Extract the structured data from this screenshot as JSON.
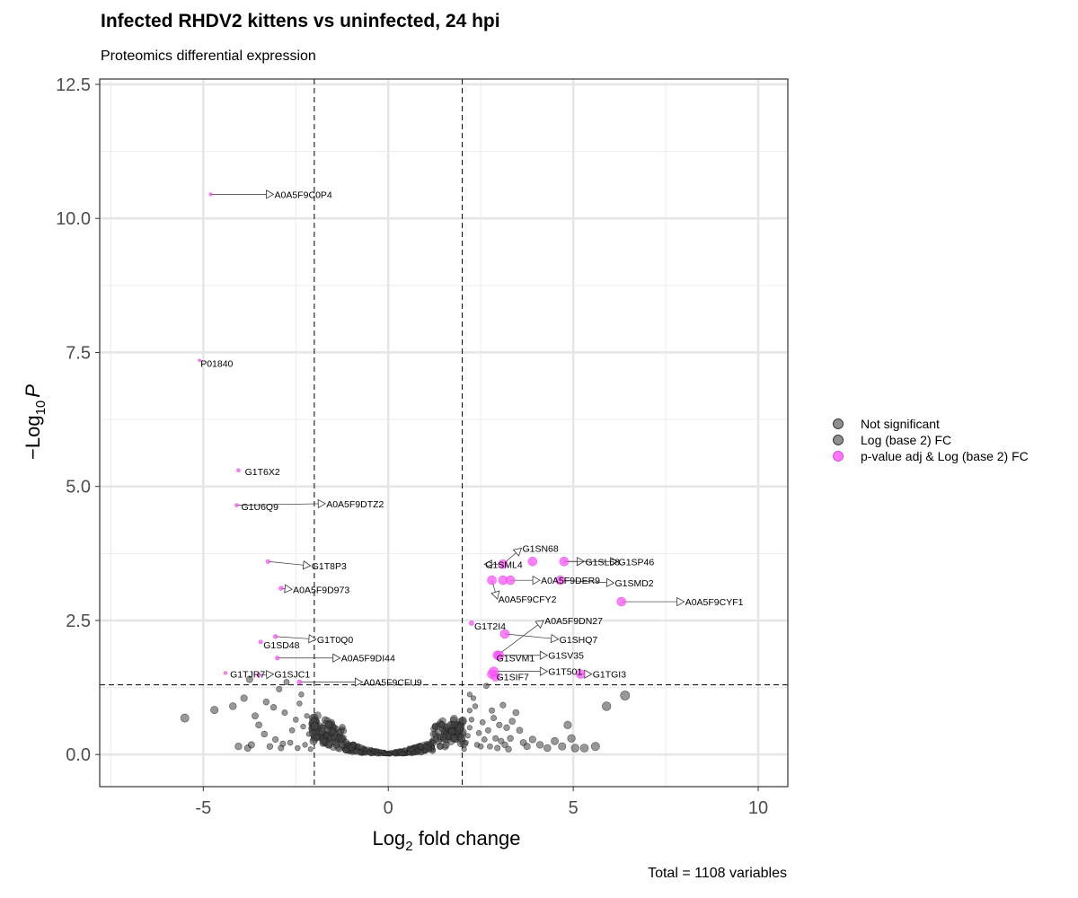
{
  "chart_data": {
    "type": "scatter",
    "title": "Infected RHDV2 kittens vs uninfected, 24 hpi",
    "subtitle": "Proteomics differential expression",
    "caption": "Total = 1108 variables",
    "xlabel": {
      "base": "Log",
      "sub": "2",
      "rest": " fold change"
    },
    "ylabel": {
      "prefix": "−Log",
      "sub": "10",
      "italic": "P"
    },
    "xlim": [
      -7.8,
      10.8
    ],
    "ylim": [
      -0.6,
      12.6
    ],
    "x_ticks": [
      -5,
      0,
      5,
      10
    ],
    "x_tick_labels": [
      "-5",
      "0",
      "5",
      "10"
    ],
    "y_ticks": [
      0,
      2.5,
      5,
      7.5,
      10,
      12.5
    ],
    "y_tick_labels": [
      "0.0",
      "2.5",
      "5.0",
      "7.5",
      "10.0",
      "12.5"
    ],
    "grid": true,
    "fc_cutoffs": [
      -2,
      2
    ],
    "p_cutoff": 1.3,
    "legend_position": "right",
    "legend": [
      {
        "label": "Not significant",
        "color": "#333333"
      },
      {
        "label": "Log (base 2) FC",
        "color": "#333333"
      },
      {
        "label": "p-value adj & Log (base 2) FC",
        "color": "#ff44ff"
      }
    ],
    "colors": {
      "ns": "#444444",
      "sig": "#ff55ff"
    },
    "series": [
      {
        "name": "Log (base 2) FC",
        "points": [
          [
            -5.5,
            0.68
          ],
          [
            -4.7,
            0.83
          ],
          [
            -4.2,
            0.9
          ],
          [
            -3.9,
            1.05
          ],
          [
            -3.75,
            1.4
          ],
          [
            -3.6,
            0.72
          ],
          [
            -3.5,
            0.55
          ],
          [
            -3.3,
            0.98
          ],
          [
            -3.1,
            0.88
          ],
          [
            -2.95,
            1.22
          ],
          [
            -2.8,
            0.78
          ],
          [
            -2.75,
            1.35
          ],
          [
            -2.6,
            0.45
          ],
          [
            -2.5,
            0.65
          ],
          [
            -2.4,
            0.95
          ],
          [
            -2.35,
            1.12
          ],
          [
            -2.3,
            0.52
          ],
          [
            -2.2,
            0.72
          ],
          [
            -2.15,
            0.38
          ],
          [
            -3.35,
            0.38
          ],
          [
            -3.05,
            0.28
          ],
          [
            -2.65,
            0.22
          ],
          [
            -4.05,
            0.15
          ],
          [
            -3.8,
            0.12
          ],
          [
            -3.7,
            0.18
          ],
          [
            -3.2,
            0.15
          ],
          [
            -2.9,
            0.12
          ],
          [
            -2.85,
            0.2
          ],
          [
            -2.45,
            0.12
          ],
          [
            -2.25,
            0.18
          ],
          [
            -2.1,
            0.1
          ],
          [
            2.05,
            0.1
          ],
          [
            2.1,
            0.22
          ],
          [
            2.15,
            0.35
          ],
          [
            2.2,
            0.5
          ],
          [
            2.25,
            0.65
          ],
          [
            2.2,
            0.82
          ],
          [
            2.3,
            1.05
          ],
          [
            2.2,
            1.12
          ],
          [
            2.35,
            0.9
          ],
          [
            2.4,
            0.18
          ],
          [
            2.45,
            0.4
          ],
          [
            2.5,
            0.15
          ],
          [
            2.55,
            0.6
          ],
          [
            2.6,
            0.28
          ],
          [
            2.65,
            1.28
          ],
          [
            2.7,
            0.45
          ],
          [
            2.75,
            0.15
          ],
          [
            2.8,
            0.82
          ],
          [
            2.85,
            0.68
          ],
          [
            2.9,
            0.3
          ],
          [
            2.95,
            0.12
          ],
          [
            3.0,
            0.55
          ],
          [
            3.05,
            0.25
          ],
          [
            3.1,
            0.92
          ],
          [
            3.15,
            0.18
          ],
          [
            3.2,
            0.5
          ],
          [
            3.25,
            0.1
          ],
          [
            3.3,
            0.3
          ],
          [
            3.35,
            0.62
          ],
          [
            3.45,
            0.78
          ],
          [
            3.55,
            0.45
          ],
          [
            3.65,
            0.22
          ],
          [
            3.75,
            0.15
          ],
          [
            3.9,
            0.28
          ],
          [
            4.1,
            0.18
          ],
          [
            4.3,
            0.12
          ],
          [
            4.5,
            0.25
          ],
          [
            4.7,
            0.15
          ],
          [
            4.85,
            0.55
          ],
          [
            4.95,
            0.3
          ],
          [
            5.05,
            0.12
          ],
          [
            5.3,
            0.12
          ],
          [
            5.6,
            0.15
          ],
          [
            5.9,
            0.9
          ],
          [
            6.4,
            1.1
          ]
        ]
      },
      {
        "name": "p-value adj & Log (base 2) FC",
        "points": [
          [
            -4.8,
            10.45
          ],
          [
            -5.1,
            7.35
          ],
          [
            -4.05,
            5.3
          ],
          [
            -4.1,
            4.65
          ],
          [
            -3.25,
            3.6
          ],
          [
            -2.9,
            3.1
          ],
          [
            -3.05,
            2.2
          ],
          [
            -3.45,
            2.1
          ],
          [
            -3.0,
            1.8
          ],
          [
            -4.4,
            1.52
          ],
          [
            -3.5,
            1.48
          ],
          [
            -2.4,
            1.35
          ],
          [
            3.1,
            3.55
          ],
          [
            3.9,
            3.6
          ],
          [
            4.75,
            3.6
          ],
          [
            2.8,
            3.25
          ],
          [
            3.1,
            3.25
          ],
          [
            3.3,
            3.25
          ],
          [
            4.65,
            3.25
          ],
          [
            6.3,
            2.85
          ],
          [
            2.25,
            2.45
          ],
          [
            3.15,
            2.25
          ],
          [
            2.95,
            1.85
          ],
          [
            3.0,
            1.85
          ],
          [
            2.8,
            1.5
          ],
          [
            2.9,
            1.45
          ],
          [
            5.2,
            1.5
          ],
          [
            2.85,
            1.55
          ]
        ]
      }
    ],
    "labels": [
      {
        "text": "A0A5F9C0P4",
        "x": -4.8,
        "y": 10.45,
        "lx": -3.1,
        "ly": 10.45
      },
      {
        "text": "P01840",
        "x": -5.1,
        "y": 7.35,
        "lx": -5.1,
        "ly": 7.3
      },
      {
        "text": "G1T6X2",
        "x": -4.05,
        "y": 5.3,
        "lx": -3.9,
        "ly": 5.28
      },
      {
        "text": "G1U6Q9",
        "x": -4.1,
        "y": 4.65,
        "lx": -4.0,
        "ly": 4.63
      },
      {
        "text": "A0A5F9DTZ2",
        "x": -4.1,
        "y": 4.65,
        "lx": -1.7,
        "ly": 4.68
      },
      {
        "text": "G1T8P3",
        "x": -3.25,
        "y": 3.6,
        "lx": -2.1,
        "ly": 3.52
      },
      {
        "text": "A0A5F9D973",
        "x": -2.9,
        "y": 3.1,
        "lx": -2.6,
        "ly": 3.08
      },
      {
        "text": "G1T0Q0",
        "x": -3.05,
        "y": 2.2,
        "lx": -1.95,
        "ly": 2.15
      },
      {
        "text": "G1SD48",
        "x": -3.45,
        "y": 2.1,
        "lx": -3.4,
        "ly": 2.05
      },
      {
        "text": "A0A5F9DI44",
        "x": -3.0,
        "y": 1.8,
        "lx": -1.3,
        "ly": 1.8
      },
      {
        "text": "G1TJR7",
        "x": -4.4,
        "y": 1.52,
        "lx": -4.3,
        "ly": 1.5
      },
      {
        "text": "G1SJC1",
        "x": -3.5,
        "y": 1.48,
        "lx": -3.1,
        "ly": 1.5
      },
      {
        "text": "A0A5F9CFU9",
        "x": -2.4,
        "y": 1.35,
        "lx": -0.7,
        "ly": 1.35
      },
      {
        "text": "G1SN68",
        "x": 3.1,
        "y": 3.55,
        "lx": 3.6,
        "ly": 3.85
      },
      {
        "text": "G1SML4",
        "x": 3.1,
        "y": 3.55,
        "lx": 2.6,
        "ly": 3.55
      },
      {
        "text": "G1SL68",
        "x": 4.75,
        "y": 3.6,
        "lx": 5.3,
        "ly": 3.6
      },
      {
        "text": "G1SP46",
        "x": 4.75,
        "y": 3.6,
        "lx": 6.2,
        "ly": 3.6
      },
      {
        "text": "A0A5F9DER9",
        "x": 3.3,
        "y": 3.25,
        "lx": 4.1,
        "ly": 3.25
      },
      {
        "text": "G1SMD2",
        "x": 4.65,
        "y": 3.25,
        "lx": 6.1,
        "ly": 3.2
      },
      {
        "text": "A0A5F9CFY2",
        "x": 2.8,
        "y": 3.25,
        "lx": 2.95,
        "ly": 2.9
      },
      {
        "text": "A0A5F9CYF1",
        "x": 6.3,
        "y": 2.85,
        "lx": 8.0,
        "ly": 2.85
      },
      {
        "text": "G1T2I4",
        "x": 2.25,
        "y": 2.45,
        "lx": 2.3,
        "ly": 2.4
      },
      {
        "text": "A0A5F9DN27",
        "x": 2.95,
        "y": 1.85,
        "lx": 4.2,
        "ly": 2.5
      },
      {
        "text": "G1SHQ7",
        "x": 3.15,
        "y": 2.25,
        "lx": 4.6,
        "ly": 2.15
      },
      {
        "text": "G1SVM1",
        "x": 2.95,
        "y": 1.85,
        "lx": 2.9,
        "ly": 1.8
      },
      {
        "text": "G1SV35",
        "x": 3.0,
        "y": 1.85,
        "lx": 4.3,
        "ly": 1.85
      },
      {
        "text": "G1SIF7",
        "x": 2.8,
        "y": 1.5,
        "lx": 2.9,
        "ly": 1.45
      },
      {
        "text": "G1T501",
        "x": 2.85,
        "y": 1.55,
        "lx": 4.3,
        "ly": 1.55
      },
      {
        "text": "G1TGI3",
        "x": 5.2,
        "y": 1.5,
        "lx": 5.5,
        "ly": 1.5
      }
    ]
  }
}
